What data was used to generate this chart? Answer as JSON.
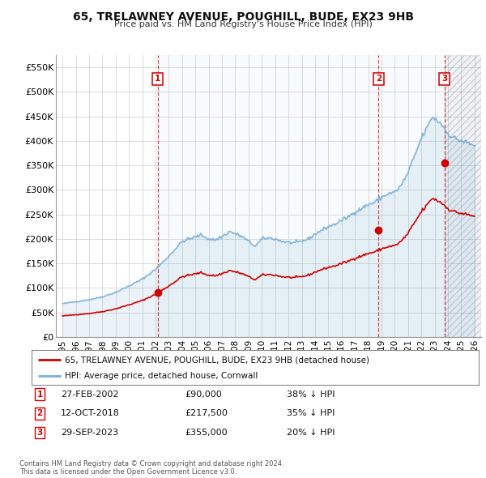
{
  "title": "65, TRELAWNEY AVENUE, POUGHILL, BUDE, EX23 9HB",
  "subtitle": "Price paid vs. HM Land Registry's House Price Index (HPI)",
  "property_label": "65, TRELAWNEY AVENUE, POUGHILL, BUDE, EX23 9HB (detached house)",
  "hpi_label": "HPI: Average price, detached house, Cornwall",
  "sale_color": "#cc0000",
  "hpi_color": "#7bafd4",
  "hpi_fill": "#ddeeff",
  "vline_color": "#cc0000",
  "background_color": "#ffffff",
  "grid_color": "#cccccc",
  "ylim": [
    0,
    575000
  ],
  "yticks": [
    0,
    50000,
    100000,
    150000,
    200000,
    250000,
    300000,
    350000,
    400000,
    450000,
    500000,
    550000
  ],
  "ytick_labels": [
    "£0",
    "£50K",
    "£100K",
    "£150K",
    "£200K",
    "£250K",
    "£300K",
    "£350K",
    "£400K",
    "£450K",
    "£500K",
    "£550K"
  ],
  "sale_dates": [
    2002.15,
    2018.78,
    2023.75
  ],
  "sale_prices": [
    90000,
    217500,
    355000
  ],
  "sale_labels": [
    "1",
    "2",
    "3"
  ],
  "sale_info": [
    {
      "label": "1",
      "date": "27-FEB-2002",
      "price": "£90,000",
      "pct": "38% ↓ HPI"
    },
    {
      "label": "2",
      "date": "12-OCT-2018",
      "price": "£217,500",
      "pct": "35% ↓ HPI"
    },
    {
      "label": "3",
      "date": "29-SEP-2023",
      "price": "£355,000",
      "pct": "20% ↓ HPI"
    }
  ],
  "footer": "Contains HM Land Registry data © Crown copyright and database right 2024.\nThis data is licensed under the Open Government Licence v3.0.",
  "xlim": [
    1994.5,
    2026.5
  ],
  "xticks": [
    1995,
    1996,
    1997,
    1998,
    1999,
    2000,
    2001,
    2002,
    2003,
    2004,
    2005,
    2006,
    2007,
    2008,
    2009,
    2010,
    2011,
    2012,
    2013,
    2014,
    2015,
    2016,
    2017,
    2018,
    2019,
    2020,
    2021,
    2022,
    2023,
    2024,
    2025,
    2026
  ]
}
